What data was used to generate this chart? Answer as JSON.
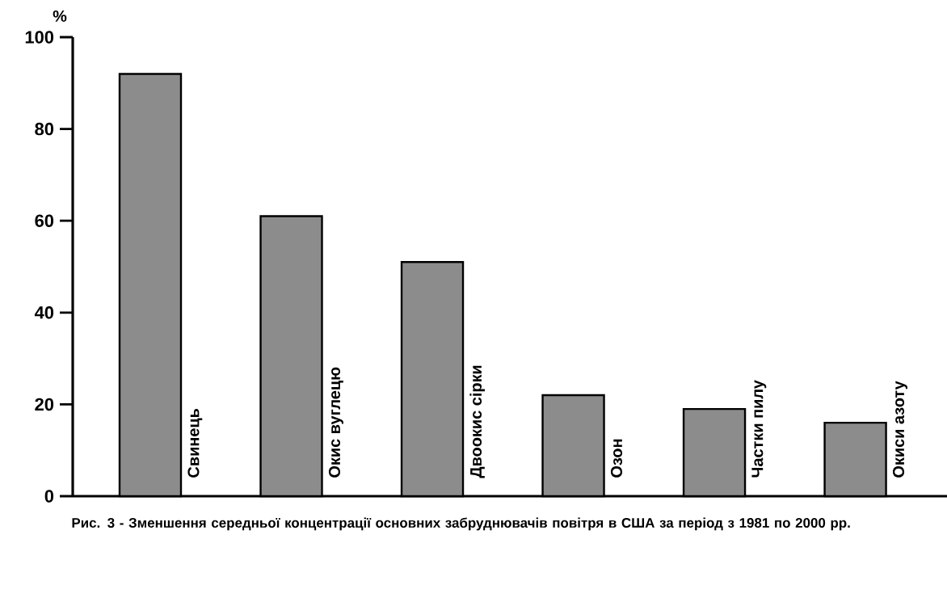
{
  "chart_data": {
    "type": "bar",
    "ylabel": "%",
    "categories": [
      "Свинець",
      "Окис вуглецю",
      "Двоокис сірки",
      "Озон",
      "Частки пилу",
      "Окиси азоту"
    ],
    "values": [
      92,
      61,
      51,
      22,
      19,
      16
    ],
    "color": "#8c8c8c",
    "ylim": [
      0,
      100
    ],
    "yticks": [
      0,
      20,
      40,
      60,
      80,
      100
    ],
    "annotations": [
      "Рис. 3 - Зменшення середньої концентрації основних забруднювачів повітря в США за період з 1981 по 2000 рр."
    ]
  }
}
